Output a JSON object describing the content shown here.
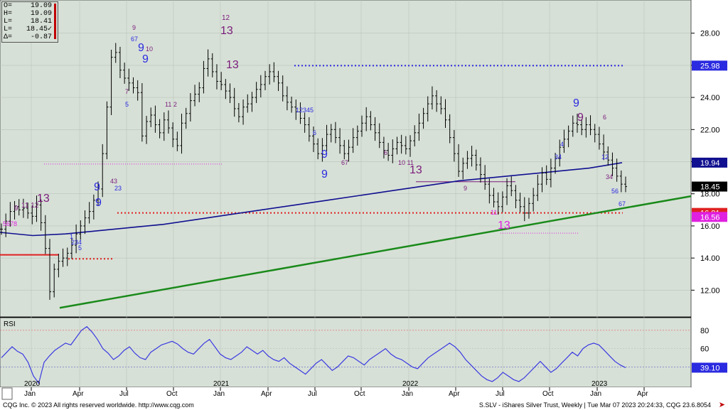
{
  "ohlc": {
    "rows": [
      {
        "label": "O=",
        "value": "19.09"
      },
      {
        "label": "H=",
        "value": "19.09"
      },
      {
        "label": "L=",
        "value": "18.41"
      },
      {
        "label": "L=",
        "value": "18.45✓"
      },
      {
        "label": "Δ=",
        "value": "-0.87"
      }
    ]
  },
  "footer": {
    "left": "CQG Inc. © 2023 All rights reserved worldwide. http://www.cqg.com",
    "right": "S.SLV - iShares Silver Trust, Weekly | Tue Mar 07 2023 20:24:33, CQG 23.6.8054",
    "icon": "arrow-right-icon"
  },
  "colors": {
    "panel_bg": "#d7e0d7",
    "price_bar": "#000000",
    "ma_line": "#101090",
    "trend_line": "#1a8a1a",
    "resistance_dots": "#2a2ae0",
    "support_dots": "#e02020",
    "rsi_line": "#3a3ae0",
    "magenta": "#e020e0",
    "purple": "#7a1a7a",
    "blue_count": "#2a2ae0"
  },
  "chart_data": [
    {
      "type": "line",
      "panel": "price",
      "y_axis_ticks": [
        "12.00",
        "14.00",
        "16.00",
        "18.00",
        "20.00",
        "22.00",
        "24.00",
        "26.00",
        "28.00"
      ],
      "ylim": [
        10.6,
        29.8
      ],
      "x_axis_ticks": [
        "Jan",
        "Apr",
        "Jul",
        "Oct",
        "Jan",
        "Apr",
        "Jul",
        "Oct",
        "Jan",
        "Apr",
        "Jul",
        "Oct",
        "Jan",
        "Apr"
      ],
      "x_year_labels": [
        "2020",
        "2021",
        "2022",
        "2023"
      ],
      "price_tags": [
        {
          "label": "25.98",
          "value": 25.98,
          "color": "#2a2ae0"
        },
        {
          "label": "19.94",
          "value": 19.94,
          "color": "#101090"
        },
        {
          "label": "18.45",
          "value": 18.45,
          "color": "#000000"
        },
        {
          "label": "16.81",
          "value": 16.81,
          "color": "#e02020"
        },
        {
          "label": "16.56",
          "value": 16.56,
          "color": "#e020e0"
        }
      ],
      "close_series": [
        15.8,
        16.3,
        16.9,
        17.2,
        17.0,
        17.1,
        16.8,
        16.6,
        17.3,
        16.2,
        14.6,
        11.9,
        13.3,
        13.8,
        14.0,
        14.3,
        14.8,
        15.5,
        16.0,
        16.5,
        16.9,
        17.6,
        18.3,
        20.5,
        23.4,
        26.5,
        26.8,
        25.7,
        25.2,
        24.9,
        24.6,
        24.3,
        21.6,
        22.5,
        22.9,
        22.3,
        21.8,
        22.6,
        22.1,
        21.4,
        21.0,
        22.4,
        23.0,
        23.8,
        24.2,
        24.6,
        25.8,
        26.4,
        25.6,
        25.0,
        24.8,
        24.4,
        24.0,
        23.3,
        22.8,
        23.4,
        23.6,
        24.0,
        24.5,
        24.8,
        25.3,
        25.6,
        25.3,
        24.9,
        24.1,
        23.7,
        23.4,
        23.1,
        22.7,
        22.3,
        21.6,
        21.1,
        20.5,
        21.0,
        21.7,
        22.0,
        21.5,
        21.0,
        20.5,
        20.9,
        21.5,
        21.9,
        22.4,
        22.8,
        22.3,
        21.8,
        21.2,
        20.7,
        20.4,
        20.8,
        21.2,
        21.0,
        20.8,
        21.3,
        21.8,
        22.4,
        23.0,
        23.6,
        24.1,
        23.6,
        23.3,
        22.6,
        21.5,
        20.5,
        19.4,
        19.9,
        20.2,
        20.4,
        19.8,
        19.2,
        18.6,
        17.9,
        17.5,
        17.2,
        17.8,
        18.5,
        18.2,
        17.6,
        17.2,
        16.8,
        17.4,
        17.9,
        18.6,
        19.3,
        18.9,
        19.6,
        20.2,
        20.9,
        21.4,
        21.9,
        22.4,
        22.3,
        22.0,
        22.3,
        22.0,
        21.7,
        21.1,
        20.6,
        20.1,
        19.6,
        19.1,
        18.6,
        18.45
      ],
      "ma_series": [
        15.6,
        15.4,
        15.5,
        15.7,
        15.9,
        16.1,
        16.4,
        16.7,
        17.0,
        17.3,
        17.6,
        17.9,
        18.2,
        18.5,
        18.8,
        19.0,
        19.2,
        19.4,
        19.6,
        19.94
      ],
      "rsi_series": [
        50,
        56,
        62,
        57,
        54,
        45,
        30,
        22,
        45,
        52,
        58,
        62,
        66,
        64,
        72,
        80,
        84,
        78,
        70,
        60,
        55,
        48,
        52,
        58,
        62,
        55,
        50,
        48,
        56,
        60,
        64,
        66,
        68,
        65,
        60,
        56,
        54,
        60,
        66,
        70,
        62,
        54,
        50,
        48,
        52,
        56,
        62,
        58,
        54,
        58,
        52,
        48,
        46,
        50,
        44,
        40,
        36,
        32,
        38,
        44,
        48,
        42,
        36,
        40,
        46,
        52,
        50,
        46,
        42,
        48,
        52,
        56,
        60,
        54,
        50,
        48,
        44,
        40,
        38,
        44,
        50,
        54,
        58,
        62,
        66,
        62,
        56,
        48,
        42,
        36,
        30,
        26,
        24,
        28,
        34,
        30,
        26,
        24,
        28,
        34,
        40,
        46,
        40,
        34,
        38,
        44,
        50,
        56,
        52,
        60,
        64,
        66,
        64,
        58,
        52,
        46,
        42,
        39.1
      ]
    },
    {
      "type": "line",
      "panel": "rsi",
      "title": "RSI",
      "y_axis_ticks": [
        "40",
        "60",
        "80"
      ],
      "ylim": [
        20,
        90
      ],
      "last_value_label": "39.10"
    }
  ]
}
